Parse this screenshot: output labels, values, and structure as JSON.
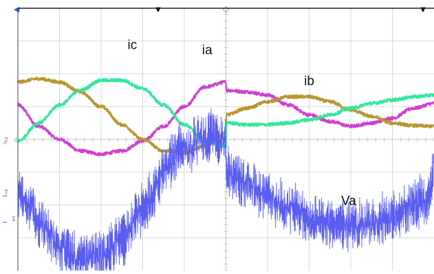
{
  "chart_data": {
    "type": "line",
    "title": "",
    "xlabel": "",
    "ylabel": "",
    "grid": true,
    "x_divisions": 10,
    "y_divisions": 8,
    "xlim": [
      0,
      10
    ],
    "ylim": [
      -4,
      4
    ],
    "transient_x": 5,
    "series": [
      {
        "name": "ia",
        "color": "#d03ed0",
        "noise": 0.05,
        "x": [
          0,
          0.5,
          1,
          1.5,
          2,
          2.5,
          3,
          3.5,
          4,
          4.5,
          5,
          5.01,
          5.5,
          6,
          6.5,
          7,
          7.5,
          8,
          8.5,
          9,
          9.5,
          10
        ],
        "y": [
          1.05,
          0.4,
          0.0,
          -0.35,
          -0.45,
          -0.35,
          -0.05,
          0.4,
          1.0,
          1.6,
          1.75,
          1.5,
          1.45,
          1.35,
          1.05,
          0.75,
          0.55,
          0.4,
          0.5,
          0.65,
          0.95,
          1.1
        ]
      },
      {
        "name": "ib",
        "color": "#b8952f",
        "noise": 0.05,
        "x": [
          0,
          0.5,
          1,
          1.5,
          2,
          2.5,
          3,
          3.5,
          4,
          4.5,
          5,
          5.01,
          5.5,
          6,
          6.5,
          7,
          7.5,
          8,
          8.5,
          9,
          9.5,
          10
        ],
        "y": [
          1.75,
          1.85,
          1.75,
          1.45,
          1.0,
          0.45,
          0.0,
          -0.35,
          -0.4,
          -0.2,
          0.2,
          0.75,
          0.95,
          1.15,
          1.3,
          1.3,
          1.15,
          0.9,
          0.7,
          0.5,
          0.42,
          0.4
        ],
        "label_series": "ic"
      },
      {
        "name": "ic",
        "color": "#2fe89a",
        "noise": 0.05,
        "x": [
          0,
          0.5,
          1,
          1.5,
          2,
          2.5,
          3,
          3.5,
          4,
          4.5,
          5,
          5.01,
          5.5,
          6,
          6.5,
          7,
          7.5,
          8,
          8.5,
          9,
          9.5,
          10
        ],
        "y": [
          -0.05,
          0.5,
          1.05,
          1.5,
          1.8,
          1.8,
          1.55,
          1.05,
          0.45,
          -0.05,
          -0.2,
          0.5,
          0.45,
          0.45,
          0.5,
          0.6,
          0.75,
          0.95,
          1.1,
          1.2,
          1.3,
          1.35
        ],
        "label_series": "ib"
      },
      {
        "name": "Va",
        "color": "#5a5ef0",
        "noise": 0.75,
        "band": 0.45,
        "x": [
          0,
          0.3,
          0.5,
          1,
          1.5,
          2,
          2.5,
          3,
          3.3,
          3.5,
          4,
          4.5,
          5,
          5.01,
          5.5,
          6,
          6.5,
          7,
          7.5,
          8,
          8.5,
          9,
          9.5,
          9.9,
          10
        ],
        "y": [
          -1.55,
          -2.0,
          -2.5,
          -3.3,
          -3.65,
          -3.55,
          -3.05,
          -2.15,
          -1.5,
          -0.9,
          -0.3,
          0.1,
          0.0,
          -1.05,
          -1.3,
          -1.7,
          -2.1,
          -2.45,
          -2.6,
          -2.65,
          -2.55,
          -2.35,
          -2.05,
          -1.8,
          -0.7
        ]
      }
    ],
    "labels": [
      {
        "text": "ic",
        "x": 2.75,
        "y": 2.75
      },
      {
        "text": "ia",
        "x": 4.55,
        "y": 2.6
      },
      {
        "text": "ib",
        "x": 7.0,
        "y": 1.65
      },
      {
        "text": "Va",
        "x": 7.95,
        "y": -2.0
      }
    ],
    "markers": {
      "trigger_top_glyph": "▼",
      "time_ref_glyph": "◇",
      "left_triangle_glyph": "◀",
      "channel_labels": [
        {
          "text": "2",
          "color": "#d03ed0",
          "y": 0.0
        },
        {
          "text": "4",
          "color": "#2fe89a",
          "y": 0.0
        },
        {
          "text": "T",
          "color": "#5a5ef0",
          "y": -1.6
        },
        {
          "text": "1",
          "color": "#5a5ef0",
          "y": -2.4
        }
      ]
    }
  }
}
